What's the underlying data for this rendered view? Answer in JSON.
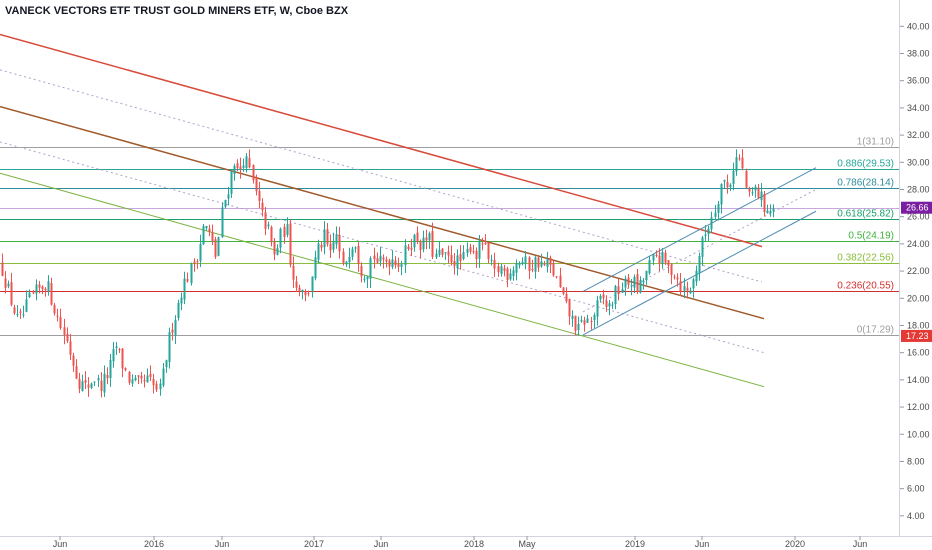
{
  "chart_data": {
    "type": "candlestick",
    "title": "VANECK VECTORS ETF TRUST GOLD MINERS ETF, W, Cboe BZX",
    "ylim": [
      2.9,
      41.2
    ],
    "y_ticks": [
      "4.00",
      "6.00",
      "8.00",
      "10.00",
      "12.00",
      "14.00",
      "16.00",
      "18.00",
      "20.00",
      "22.00",
      "24.00",
      "26.00",
      "28.00",
      "30.00",
      "32.00",
      "34.00",
      "36.00",
      "38.00",
      "40.00"
    ],
    "x_ticks": [
      "Jun",
      "2016",
      "Jun",
      "2017",
      "Jun",
      "2018",
      "May",
      "2019",
      "Jun",
      "2020",
      "Jun"
    ],
    "price_path": [
      [
        0,
        22.5
      ],
      [
        6,
        21.0
      ],
      [
        12,
        19.5
      ],
      [
        18,
        18.2
      ],
      [
        22,
        18.6
      ],
      [
        30,
        20.0
      ],
      [
        38,
        20.6
      ],
      [
        46,
        21.2
      ],
      [
        52,
        19.8
      ],
      [
        60,
        18.0
      ],
      [
        66,
        17.0
      ],
      [
        72,
        15.5
      ],
      [
        78,
        14.0
      ],
      [
        86,
        13.4
      ],
      [
        94,
        14.2
      ],
      [
        100,
        13.5
      ],
      [
        108,
        14.5
      ],
      [
        116,
        16.5
      ],
      [
        122,
        15.2
      ],
      [
        130,
        13.8
      ],
      [
        140,
        13.6
      ],
      [
        148,
        14.0
      ],
      [
        154,
        13.4
      ],
      [
        160,
        13.2
      ],
      [
        166,
        15.8
      ],
      [
        170,
        17.5
      ],
      [
        176,
        19.0
      ],
      [
        182,
        20.8
      ],
      [
        190,
        22.0
      ],
      [
        198,
        23.5
      ],
      [
        204,
        25.5
      ],
      [
        210,
        24.5
      ],
      [
        216,
        23.0
      ],
      [
        222,
        26.5
      ],
      [
        228,
        28.2
      ],
      [
        234,
        30.2
      ],
      [
        238,
        29.0
      ],
      [
        244,
        30.5
      ],
      [
        250,
        29.2
      ],
      [
        256,
        27.5
      ],
      [
        262,
        26.0
      ],
      [
        268,
        25.0
      ],
      [
        274,
        23.0
      ],
      [
        280,
        24.5
      ],
      [
        286,
        25.4
      ],
      [
        290,
        22.8
      ],
      [
        296,
        20.8
      ],
      [
        302,
        21.0
      ],
      [
        306,
        19.8
      ],
      [
        312,
        22.0
      ],
      [
        318,
        23.6
      ],
      [
        324,
        24.5
      ],
      [
        330,
        23.0
      ],
      [
        336,
        24.8
      ],
      [
        342,
        22.0
      ],
      [
        348,
        23.5
      ],
      [
        354,
        24.5
      ],
      [
        360,
        22.3
      ],
      [
        366,
        21.8
      ],
      [
        372,
        23.3
      ],
      [
        378,
        22.5
      ],
      [
        386,
        22.8
      ],
      [
        394,
        23.0
      ],
      [
        400,
        22.5
      ],
      [
        408,
        24.0
      ],
      [
        416,
        24.5
      ],
      [
        422,
        23.8
      ],
      [
        428,
        24.6
      ],
      [
        434,
        23.0
      ],
      [
        440,
        23.2
      ],
      [
        446,
        22.8
      ],
      [
        452,
        23.0
      ],
      [
        458,
        22.6
      ],
      [
        464,
        22.9
      ],
      [
        470,
        24.0
      ],
      [
        476,
        23.2
      ],
      [
        482,
        24.2
      ],
      [
        488,
        22.8
      ],
      [
        494,
        21.8
      ],
      [
        500,
        22.3
      ],
      [
        506,
        21.8
      ],
      [
        512,
        22.3
      ],
      [
        518,
        22.8
      ],
      [
        524,
        22.6
      ],
      [
        530,
        22.3
      ],
      [
        536,
        22.8
      ],
      [
        542,
        22.4
      ],
      [
        548,
        22.5
      ],
      [
        554,
        21.8
      ],
      [
        560,
        20.5
      ],
      [
        566,
        19.2
      ],
      [
        572,
        18.4
      ],
      [
        578,
        17.6
      ],
      [
        584,
        18.4
      ],
      [
        590,
        18.2
      ],
      [
        596,
        19.3
      ],
      [
        602,
        20.0
      ],
      [
        608,
        19.2
      ],
      [
        614,
        20.2
      ],
      [
        620,
        20.8
      ],
      [
        626,
        21.0
      ],
      [
        632,
        21.4
      ],
      [
        638,
        20.5
      ],
      [
        644,
        21.5
      ],
      [
        650,
        22.5
      ],
      [
        656,
        23.2
      ],
      [
        662,
        22.8
      ],
      [
        668,
        22.2
      ],
      [
        674,
        22.0
      ],
      [
        680,
        21.0
      ],
      [
        686,
        20.4
      ],
      [
        692,
        21.0
      ],
      [
        698,
        23.0
      ],
      [
        704,
        24.5
      ],
      [
        710,
        25.8
      ],
      [
        716,
        27.0
      ],
      [
        722,
        28.8
      ],
      [
        728,
        28.0
      ],
      [
        734,
        30.0
      ],
      [
        738,
        30.5
      ],
      [
        742,
        29.5
      ],
      [
        748,
        27.2
      ],
      [
        754,
        28.0
      ],
      [
        760,
        27.5
      ],
      [
        764,
        26.8
      ],
      [
        770,
        26.4
      ],
      [
        776,
        26.7
      ]
    ],
    "fib_levels": [
      {
        "label": "1(31.10)",
        "value": 31.1,
        "color": "#9e9e9e"
      },
      {
        "label": "0.886(29.53)",
        "value": 29.53,
        "color": "#26a69a"
      },
      {
        "label": "0.786(28.14)",
        "value": 28.14,
        "color": "#2f8c9c"
      },
      {
        "label": "0.618(25.82)",
        "value": 25.82,
        "color": "#1aa06a"
      },
      {
        "label": "0.5(24.19)",
        "value": 24.19,
        "color": "#3fb23f"
      },
      {
        "label": "0.382(22.56)",
        "value": 22.56,
        "color": "#8bbd3c"
      },
      {
        "label": "0.236(20.55)",
        "value": 20.55,
        "color": "#d32f2f"
      },
      {
        "label": "0(17.29)",
        "value": 17.29,
        "color": "#9e9e9e"
      }
    ],
    "current_price": {
      "label": "26.66",
      "value": 26.66,
      "color": "#7b1fa2"
    },
    "low_marker": {
      "label": "17.23",
      "value": 17.23,
      "color": "#e53935"
    },
    "trendlines": [
      {
        "name": "",
        "color": "#d84a3a",
        "width": 1.5,
        "dash": false,
        "x1": 0,
        "y1": 39.4,
        "x2": 762,
        "y2": 23.8
      },
      {
        "name": "",
        "color": "#a05a2c",
        "width": 1.5,
        "dash": false,
        "x1": 0,
        "y1": 34.1,
        "x2": 764,
        "y2": 18.5
      },
      {
        "name": "",
        "color": "#7cb342",
        "width": 1,
        "dash": false,
        "x1": 0,
        "y1": 29.2,
        "x2": 764,
        "y2": 13.5
      },
      {
        "name": "",
        "color": "#b0a0c8",
        "width": 1,
        "dash": true,
        "x1": 0,
        "y1": 36.8,
        "x2": 762,
        "y2": 21.2
      },
      {
        "name": "",
        "color": "#b0a0c8",
        "width": 1,
        "dash": true,
        "x1": 0,
        "y1": 31.5,
        "x2": 764,
        "y2": 16.0
      },
      {
        "name": "",
        "color": "#4f8db3",
        "width": 1,
        "dash": false,
        "x1": 583,
        "y1": 20.5,
        "x2": 816,
        "y2": 29.6
      },
      {
        "name": "",
        "color": "#4f8db3",
        "width": 1,
        "dash": false,
        "x1": 583,
        "y1": 17.3,
        "x2": 816,
        "y2": 26.4
      },
      {
        "name": "",
        "color": "#b0a0c8",
        "width": 1,
        "dash": true,
        "x1": 583,
        "y1": 19.0,
        "x2": 816,
        "y2": 28.0
      }
    ]
  }
}
